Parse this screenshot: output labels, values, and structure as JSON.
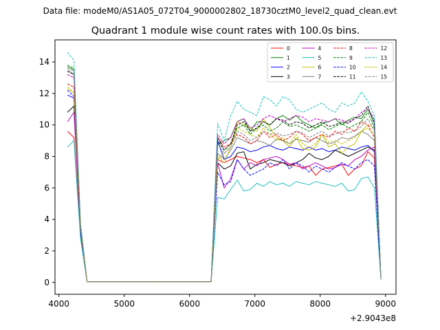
{
  "chart_data": {
    "type": "line",
    "suptitle": "Data file: modeM0/AS1A05_072T04_9000002802_18730cztM0_level2_quad_clean.evt",
    "title": "Quadrant 1 module wise count rates with 100.0s bins.",
    "xlabel": "",
    "ylabel": "",
    "x_offset_label": "+2.9043e8",
    "xlim": [
      3940,
      9160
    ],
    "ylim": [
      -0.75,
      15.4
    ],
    "xticks": [
      4000,
      5000,
      6000,
      7000,
      8000,
      9000
    ],
    "yticks": [
      0,
      2,
      4,
      6,
      8,
      10,
      12,
      14
    ],
    "legend_position": "upper-right",
    "legend_columns": 4,
    "x": [
      4130,
      4230,
      4330,
      4430,
      4530,
      4630,
      4730,
      4830,
      4930,
      5030,
      5130,
      5230,
      5330,
      5430,
      5530,
      5630,
      5730,
      5830,
      5930,
      6030,
      6130,
      6230,
      6330,
      6430,
      6530,
      6630,
      6730,
      6830,
      6930,
      7030,
      7130,
      7230,
      7330,
      7430,
      7530,
      7630,
      7730,
      7830,
      7930,
      8030,
      8130,
      8230,
      8330,
      8430,
      8530,
      8630,
      8730,
      8830,
      8930
    ],
    "series": [
      {
        "name": "0",
        "color": "#ff0000",
        "dash": false,
        "values": [
          9.6,
          9.2,
          3.2,
          0.05,
          0.05,
          0.05,
          0.05,
          0.05,
          0.05,
          0.05,
          0.05,
          0.05,
          0.05,
          0.05,
          0.05,
          0.05,
          0.05,
          0.05,
          0.05,
          0.05,
          0.05,
          0.05,
          0.05,
          7.8,
          7.6,
          7.8,
          8.0,
          7.9,
          7.8,
          7.6,
          7.8,
          7.3,
          7.5,
          7.6,
          7.5,
          7.4,
          7.3,
          7.4,
          6.8,
          7.2,
          7.3,
          7.4,
          7.5,
          6.8,
          7.2,
          7.4,
          8.3,
          7.9,
          0.2
        ]
      },
      {
        "name": "1",
        "color": "#008000",
        "dash": false,
        "values": [
          13.7,
          13.5,
          3.6,
          0.05,
          0.05,
          0.05,
          0.05,
          0.05,
          0.05,
          0.05,
          0.05,
          0.05,
          0.05,
          0.05,
          0.05,
          0.05,
          0.05,
          0.05,
          0.05,
          0.05,
          0.05,
          0.05,
          0.05,
          8.8,
          9.0,
          9.2,
          10.2,
          10.4,
          9.6,
          10.2,
          10.2,
          10.0,
          10.4,
          10.6,
          10.3,
          10.6,
          10.2,
          10.0,
          9.8,
          10.1,
          10.2,
          10.4,
          10.0,
          10.3,
          10.5,
          10.4,
          11.0,
          10.2,
          0.2
        ]
      },
      {
        "name": "2",
        "color": "#0000ff",
        "dash": false,
        "values": [
          11.9,
          11.7,
          3.3,
          0.05,
          0.05,
          0.05,
          0.05,
          0.05,
          0.05,
          0.05,
          0.05,
          0.05,
          0.05,
          0.05,
          0.05,
          0.05,
          0.05,
          0.05,
          0.05,
          0.05,
          0.05,
          0.05,
          0.05,
          9.0,
          7.8,
          8.0,
          8.6,
          8.5,
          8.3,
          8.4,
          8.6,
          8.7,
          8.5,
          8.4,
          8.6,
          8.5,
          8.4,
          8.6,
          8.4,
          8.5,
          8.3,
          8.4,
          8.6,
          8.5,
          8.4,
          8.6,
          8.7,
          8.3,
          0.2
        ]
      },
      {
        "name": "3",
        "color": "#000000",
        "dash": false,
        "values": [
          10.8,
          11.2,
          3.2,
          0.05,
          0.05,
          0.05,
          0.05,
          0.05,
          0.05,
          0.05,
          0.05,
          0.05,
          0.05,
          0.05,
          0.05,
          0.05,
          0.05,
          0.05,
          0.05,
          0.05,
          0.05,
          0.05,
          0.05,
          7.6,
          7.2,
          7.4,
          8.2,
          8.3,
          7.2,
          7.5,
          7.6,
          7.8,
          7.7,
          7.6,
          7.4,
          7.6,
          7.8,
          8.2,
          7.9,
          7.8,
          8.0,
          8.4,
          8.2,
          8.0,
          8.2,
          8.4,
          8.6,
          8.4,
          0.2
        ]
      },
      {
        "name": "4",
        "color": "#bf00bf",
        "dash": false,
        "values": [
          10.2,
          10.8,
          3.3,
          0.05,
          0.05,
          0.05,
          0.05,
          0.05,
          0.05,
          0.05,
          0.05,
          0.05,
          0.05,
          0.05,
          0.05,
          0.05,
          0.05,
          0.05,
          0.05,
          0.05,
          0.05,
          0.05,
          0.05,
          7.6,
          6.0,
          6.6,
          7.8,
          7.2,
          7.6,
          7.4,
          7.8,
          7.9,
          8.0,
          7.8,
          7.5,
          7.6,
          7.2,
          7.4,
          7.6,
          7.4,
          7.2,
          7.3,
          7.5,
          7.4,
          7.8,
          8.0,
          8.4,
          8.6,
          0.2
        ]
      },
      {
        "name": "5",
        "color": "#1fbfbf",
        "dash": false,
        "values": [
          8.6,
          9.0,
          2.8,
          0.05,
          0.05,
          0.05,
          0.05,
          0.05,
          0.05,
          0.05,
          0.05,
          0.05,
          0.05,
          0.05,
          0.05,
          0.05,
          0.05,
          0.05,
          0.05,
          0.05,
          0.05,
          0.05,
          0.05,
          5.4,
          5.3,
          5.9,
          6.5,
          5.8,
          5.9,
          6.3,
          6.1,
          6.4,
          6.2,
          6.3,
          6.1,
          6.4,
          6.3,
          6.2,
          6.4,
          6.3,
          6.2,
          6.1,
          6.3,
          5.8,
          5.9,
          6.6,
          6.7,
          6.0,
          0.2
        ]
      },
      {
        "name": "6",
        "color": "#bfbf00",
        "dash": false,
        "values": [
          12.3,
          12.0,
          3.5,
          0.05,
          0.05,
          0.05,
          0.05,
          0.05,
          0.05,
          0.05,
          0.05,
          0.05,
          0.05,
          0.05,
          0.05,
          0.05,
          0.05,
          0.05,
          0.05,
          0.05,
          0.05,
          0.05,
          0.05,
          7.8,
          8.2,
          8.6,
          10.2,
          10.0,
          9.8,
          9.6,
          10.4,
          9.8,
          9.2,
          9.0,
          8.6,
          9.2,
          8.5,
          8.4,
          8.6,
          9.4,
          8.6,
          8.8,
          8.2,
          8.6,
          8.8,
          9.6,
          10.0,
          9.8,
          0.2
        ]
      },
      {
        "name": "7",
        "color": "#808080",
        "dash": false,
        "values": [
          13.5,
          13.2,
          3.6,
          0.05,
          0.05,
          0.05,
          0.05,
          0.05,
          0.05,
          0.05,
          0.05,
          0.05,
          0.05,
          0.05,
          0.05,
          0.05,
          0.05,
          0.05,
          0.05,
          0.05,
          0.05,
          0.05,
          0.05,
          8.2,
          7.8,
          8.4,
          9.2,
          9.0,
          8.8,
          9.0,
          8.9,
          8.7,
          9.1,
          9.0,
          8.8,
          9.1,
          9.0,
          8.9,
          9.2,
          9.0,
          8.8,
          8.9,
          9.2,
          9.1,
          9.3,
          9.6,
          9.4,
          9.0,
          0.2
        ]
      },
      {
        "name": "8",
        "color": "#ff0000",
        "dash": true,
        "values": [
          12.6,
          12.4,
          3.5,
          0.05,
          0.05,
          0.05,
          0.05,
          0.05,
          0.05,
          0.05,
          0.05,
          0.05,
          0.05,
          0.05,
          0.05,
          0.05,
          0.05,
          0.05,
          0.05,
          0.05,
          0.05,
          0.05,
          0.05,
          9.2,
          8.6,
          8.8,
          9.4,
          9.2,
          8.8,
          9.0,
          9.6,
          9.2,
          9.4,
          9.0,
          9.2,
          9.6,
          9.4,
          9.0,
          9.2,
          9.4,
          9.2,
          9.6,
          9.4,
          9.8,
          9.6,
          10.2,
          10.0,
          9.2,
          0.2
        ]
      },
      {
        "name": "9",
        "color": "#008000",
        "dash": true,
        "values": [
          13.8,
          13.6,
          3.7,
          0.05,
          0.05,
          0.05,
          0.05,
          0.05,
          0.05,
          0.05,
          0.05,
          0.05,
          0.05,
          0.05,
          0.05,
          0.05,
          0.05,
          0.05,
          0.05,
          0.05,
          0.05,
          0.05,
          0.05,
          9.0,
          8.4,
          8.8,
          9.8,
          10.0,
          9.4,
          9.8,
          10.0,
          9.6,
          9.8,
          10.2,
          9.9,
          10.0,
          9.8,
          9.6,
          9.8,
          10.0,
          9.7,
          9.9,
          10.1,
          9.8,
          10.0,
          10.2,
          10.8,
          9.8,
          0.2
        ]
      },
      {
        "name": "10",
        "color": "#0000ff",
        "dash": true,
        "values": [
          12.2,
          11.8,
          3.3,
          0.05,
          0.05,
          0.05,
          0.05,
          0.05,
          0.05,
          0.05,
          0.05,
          0.05,
          0.05,
          0.05,
          0.05,
          0.05,
          0.05,
          0.05,
          0.05,
          0.05,
          0.05,
          0.05,
          0.05,
          7.0,
          6.2,
          6.4,
          7.8,
          7.2,
          6.8,
          7.0,
          7.2,
          7.6,
          7.4,
          7.8,
          7.2,
          7.6,
          7.4,
          7.0,
          7.4,
          7.2,
          7.0,
          7.3,
          7.6,
          7.4,
          7.2,
          7.6,
          7.8,
          7.4,
          0.2
        ]
      },
      {
        "name": "11",
        "color": "#000000",
        "dash": true,
        "values": [
          13.4,
          13.2,
          3.6,
          0.05,
          0.05,
          0.05,
          0.05,
          0.05,
          0.05,
          0.05,
          0.05,
          0.05,
          0.05,
          0.05,
          0.05,
          0.05,
          0.05,
          0.05,
          0.05,
          0.05,
          0.05,
          0.05,
          0.05,
          9.2,
          8.4,
          8.8,
          10.0,
          10.2,
          9.6,
          9.8,
          10.2,
          10.0,
          10.4,
          10.3,
          10.0,
          10.2,
          10.1,
          9.8,
          10.0,
          10.2,
          9.9,
          10.0,
          10.2,
          10.1,
          10.4,
          10.6,
          11.2,
          10.0,
          0.2
        ]
      },
      {
        "name": "12",
        "color": "#bf00bf",
        "dash": true,
        "values": [
          13.2,
          13.0,
          3.6,
          0.05,
          0.05,
          0.05,
          0.05,
          0.05,
          0.05,
          0.05,
          0.05,
          0.05,
          0.05,
          0.05,
          0.05,
          0.05,
          0.05,
          0.05,
          0.05,
          0.05,
          0.05,
          0.05,
          0.05,
          9.4,
          8.8,
          9.2,
          10.2,
          10.4,
          9.8,
          10.0,
          10.4,
          10.6,
          10.4,
          10.2,
          10.4,
          10.6,
          10.5,
          10.2,
          10.4,
          10.3,
          10.2,
          10.4,
          10.3,
          10.2,
          10.4,
          10.8,
          11.0,
          10.4,
          0.2
        ]
      },
      {
        "name": "13",
        "color": "#1fbfbf",
        "dash": true,
        "values": [
          14.6,
          14.1,
          3.8,
          0.05,
          0.05,
          0.05,
          0.05,
          0.05,
          0.05,
          0.05,
          0.05,
          0.05,
          0.05,
          0.05,
          0.05,
          0.05,
          0.05,
          0.05,
          0.05,
          0.05,
          0.05,
          0.05,
          0.05,
          10.1,
          9.0,
          10.6,
          11.5,
          11.0,
          10.8,
          10.6,
          11.8,
          11.6,
          11.2,
          11.8,
          11.6,
          11.0,
          10.8,
          11.0,
          11.2,
          11.4,
          11.0,
          10.8,
          11.4,
          11.2,
          11.4,
          12.1,
          11.5,
          10.6,
          0.2
        ]
      },
      {
        "name": "14",
        "color": "#bfbf00",
        "dash": true,
        "values": [
          12.4,
          12.1,
          3.5,
          0.05,
          0.05,
          0.05,
          0.05,
          0.05,
          0.05,
          0.05,
          0.05,
          0.05,
          0.05,
          0.05,
          0.05,
          0.05,
          0.05,
          0.05,
          0.05,
          0.05,
          0.05,
          0.05,
          0.05,
          8.0,
          7.6,
          8.6,
          9.8,
          9.6,
          9.4,
          9.2,
          9.8,
          9.4,
          9.0,
          9.2,
          8.8,
          9.4,
          8.8,
          8.6,
          8.8,
          9.4,
          8.9,
          9.0,
          8.8,
          9.0,
          9.2,
          9.6,
          9.8,
          9.4,
          0.2
        ]
      },
      {
        "name": "15",
        "color": "#808080",
        "dash": true,
        "values": [
          13.6,
          13.4,
          3.6,
          0.05,
          0.05,
          0.05,
          0.05,
          0.05,
          0.05,
          0.05,
          0.05,
          0.05,
          0.05,
          0.05,
          0.05,
          0.05,
          0.05,
          0.05,
          0.05,
          0.05,
          0.05,
          0.05,
          0.05,
          8.8,
          8.2,
          8.6,
          9.6,
          9.4,
          9.0,
          9.2,
          9.6,
          9.4,
          9.5,
          9.3,
          9.4,
          9.6,
          9.5,
          9.2,
          9.4,
          9.6,
          9.3,
          9.4,
          9.6,
          9.5,
          9.6,
          9.9,
          10.4,
          9.6,
          0.2
        ]
      }
    ]
  }
}
